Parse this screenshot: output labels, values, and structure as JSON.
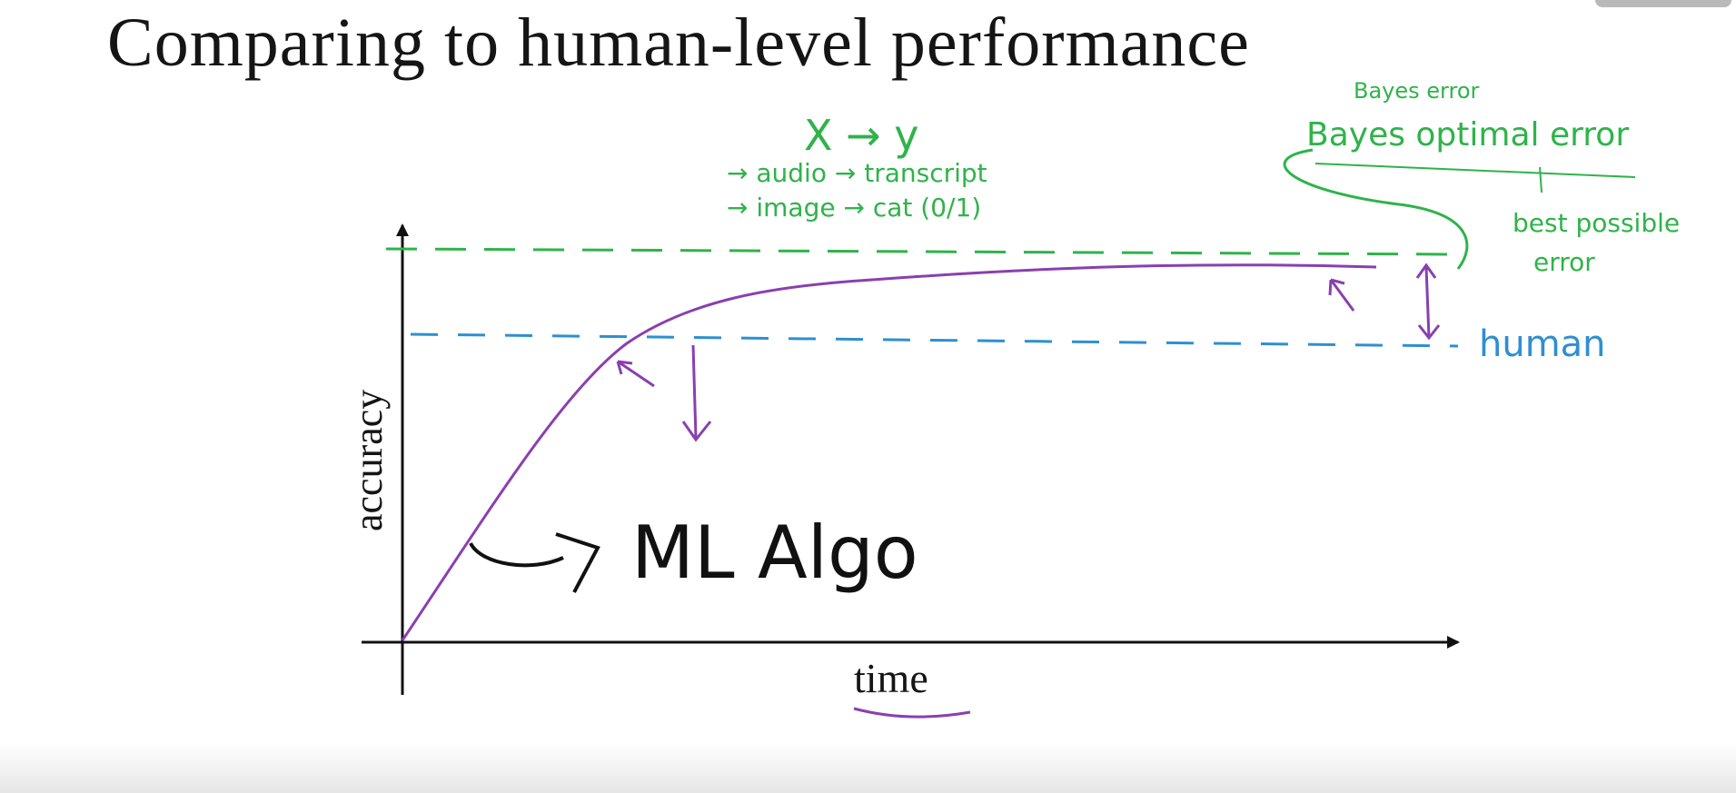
{
  "title": "Comparing to human-level performance",
  "axes": {
    "x_label": "time",
    "y_label": "accuracy"
  },
  "annotations": {
    "xy_mapping": "X → y",
    "example_audio": "→ audio → transcript",
    "example_image": "→ image → cat (0/1)",
    "bayes_error_small": "Bayes error",
    "bayes_optimal_error": "Bayes optimal error",
    "best_possible_error_line1": "best possible",
    "best_possible_error_line2": "error",
    "human_label": "human",
    "ml_algo_label": "ML Algo"
  },
  "colors": {
    "ink_black": "#111111",
    "ink_purple": "#8a3fb0",
    "ink_green": "#2fb34a",
    "ink_blue": "#2e8fd0",
    "title_text": "#151515"
  }
}
